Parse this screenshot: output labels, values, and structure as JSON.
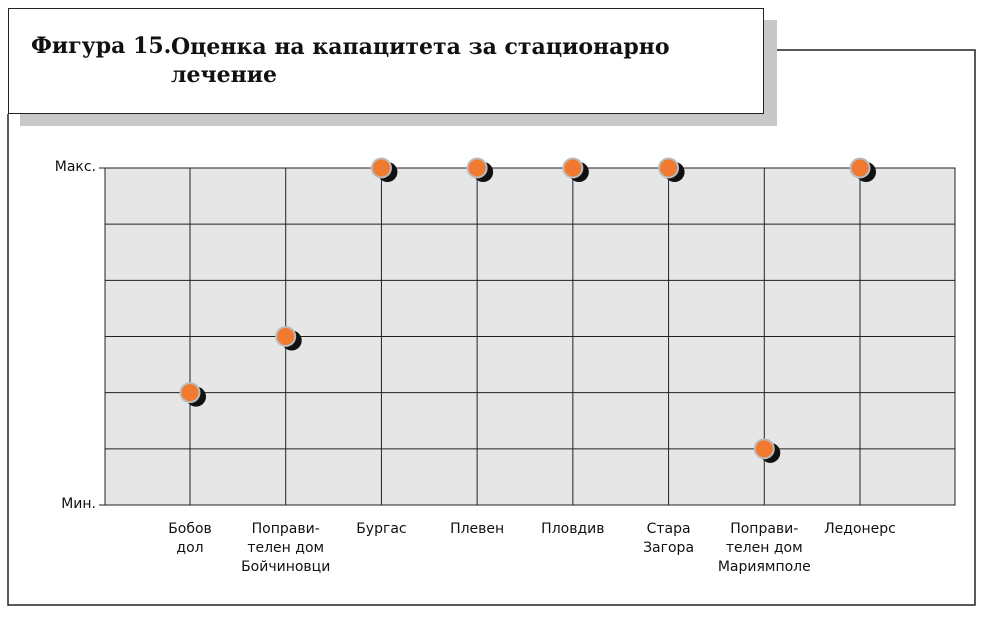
{
  "chart_data": {
    "type": "dot",
    "title_label": "Фигура 15.",
    "title": "Оценка на капацитета за стационарно лечение",
    "categories": [
      "Бобов\nдол",
      "Поправи-\nтелен дом\nБойчиновци",
      "Бургас",
      "Плевен",
      "Пловдив",
      "Стара\nЗагора",
      "Поправи-\nтелен дом\nМариямполе",
      "Ледонерс"
    ],
    "values": [
      2,
      3,
      6,
      6,
      6,
      6,
      1,
      6
    ],
    "color": "#f07a30",
    "ylim": [
      0,
      6
    ],
    "yticks": [
      {
        "value": 0,
        "label": "Мин."
      },
      {
        "value": 6,
        "label": "Макс."
      }
    ],
    "ygrid": [
      0,
      1,
      2,
      3,
      4,
      5,
      6
    ],
    "grid": true
  }
}
